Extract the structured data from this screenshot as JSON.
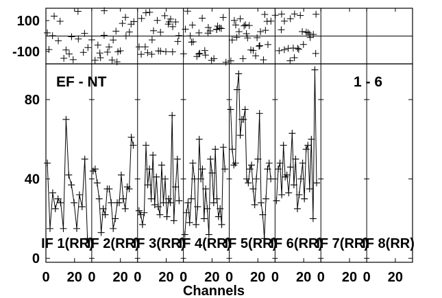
{
  "chart_data": {
    "type": "scatter",
    "title": "EF - NT",
    "baseline_label": "1 - 6",
    "xlabel": "Channels",
    "panels": [
      {
        "label": "IF 1(RR)"
      },
      {
        "label": "IF 2(RR)"
      },
      {
        "label": "IF 3(RR)"
      },
      {
        "label": "IF 4(RR)"
      },
      {
        "label": "IF 5(RR)"
      },
      {
        "label": "IF 6(RR)"
      },
      {
        "label": "IF 7(RR)"
      },
      {
        "label": "IF 8(RR)"
      }
    ],
    "x_ticks": [
      "0",
      "20"
    ],
    "x_range": [
      0,
      32
    ],
    "amplitude": {
      "ylim": [
        -2,
        98
      ],
      "yticks": [
        "0",
        "40",
        "80"
      ],
      "series": [
        [
          48,
          15,
          33,
          25,
          30,
          28,
          15,
          70,
          42,
          37,
          28,
          15,
          32,
          26,
          50,
          10
        ],
        [
          44,
          45,
          38,
          30,
          13,
          25,
          22,
          35,
          35,
          28,
          15,
          20,
          28,
          28,
          42,
          30,
          25,
          36,
          35,
          61,
          57
        ],
        [
          24,
          22,
          17,
          23,
          57,
          37,
          45,
          30,
          52,
          27,
          41,
          26,
          22,
          47,
          28,
          40,
          21,
          30,
          28,
          72,
          19,
          36,
          50,
          29
        ],
        [
          12,
          23,
          28,
          18,
          30,
          48,
          40,
          17,
          26,
          60,
          40,
          45,
          20,
          35,
          25,
          12,
          50,
          43,
          28,
          55,
          30,
          21,
          25,
          17,
          56,
          45
        ],
        [
          75,
          55,
          47,
          48,
          85,
          93,
          62,
          70,
          70,
          75,
          40,
          38,
          45,
          47,
          35,
          27,
          40,
          50,
          73,
          28,
          22,
          10,
          30,
          45,
          48,
          40
        ],
        [
          29,
          45,
          48,
          32,
          57,
          41,
          42,
          33,
          46,
          63,
          37,
          50,
          25,
          32,
          40,
          48,
          30,
          55,
          57,
          35,
          60,
          20,
          95,
          38
        ]
      ]
    },
    "phase": {
      "ylim": [
        -180,
        180
      ],
      "yticks": [
        "100",
        "-100"
      ]
    }
  }
}
